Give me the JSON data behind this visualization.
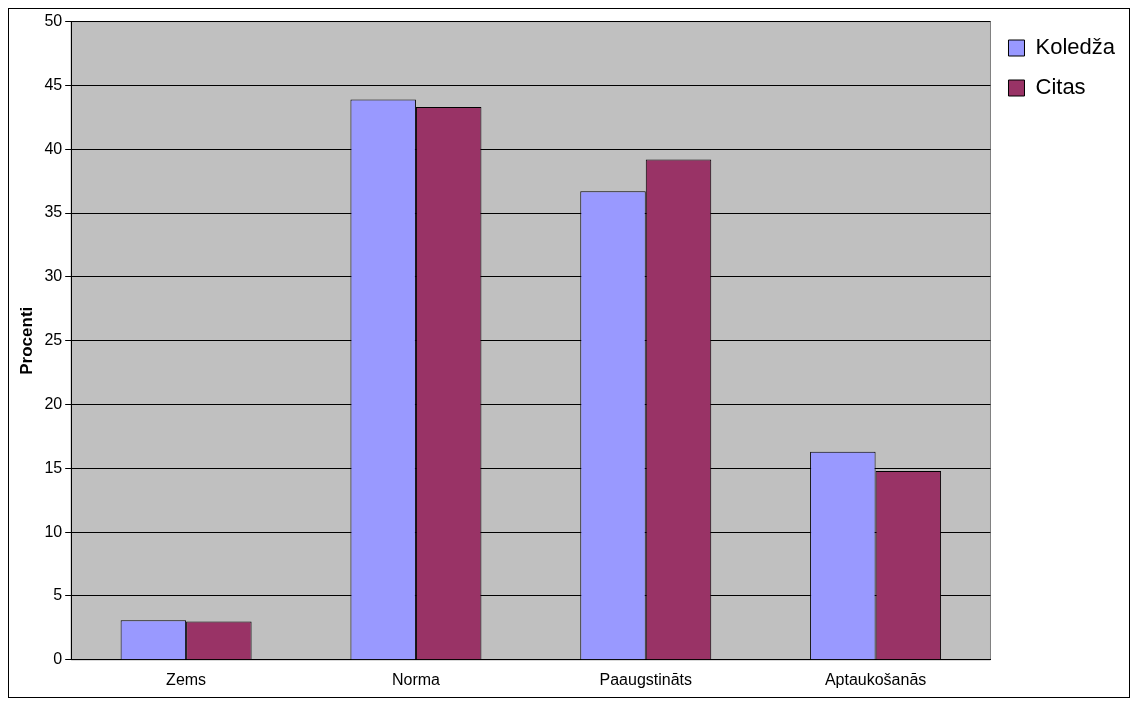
{
  "chart_data": {
    "type": "bar",
    "ylabel": "Procenti",
    "categories": [
      "Zems",
      "Norma",
      "Paaugstināts",
      "Aptaukošanās"
    ],
    "series": [
      {
        "name": "Koledža",
        "color": "#9999ff",
        "values": [
          3.1,
          43.9,
          36.7,
          16.3
        ]
      },
      {
        "name": "Citas",
        "color": "#993366",
        "values": [
          3.0,
          43.3,
          39.2,
          14.8
        ]
      }
    ],
    "ylim": [
      0,
      50
    ],
    "yticks": [
      0,
      5,
      10,
      15,
      20,
      25,
      30,
      35,
      40,
      45,
      50
    ],
    "grid": "y",
    "legend": "top right"
  }
}
